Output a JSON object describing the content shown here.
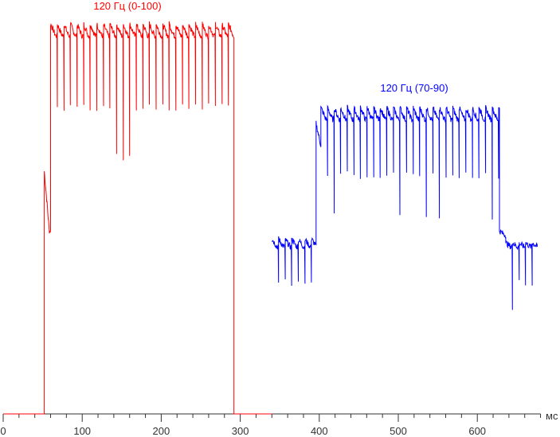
{
  "chart_data": {
    "type": "line",
    "title": "",
    "xlabel": "мс",
    "ylabel": "",
    "xlim": [
      0,
      680
    ],
    "x_ticks": [
      0,
      100,
      200,
      300,
      400,
      500,
      600
    ],
    "x_minor_step": 20,
    "grid": false,
    "refresh_period_ms": 8.33,
    "series": [
      {
        "name": "120 Гц (0-100)",
        "color": "#ff0000",
        "baseline": 0,
        "segments": [
          {
            "from": 52,
            "to": 60,
            "peak": 61,
            "settle": 46,
            "dip": null
          },
          {
            "from": 60,
            "to": 292,
            "peak": 98,
            "settle": 95,
            "dip": 77
          }
        ]
      },
      {
        "name": "120 Гц (70-90)",
        "color": "#0000ff",
        "baseline": null,
        "segments": [
          {
            "from": 340,
            "to": 396,
            "peak": 44,
            "settle": 42,
            "dip": 33
          },
          {
            "from": 396,
            "to": 402,
            "peak": 73,
            "settle": 67,
            "dip": null
          },
          {
            "from": 402,
            "to": 628,
            "peak": 77,
            "settle": 74,
            "dip": 60
          },
          {
            "from": 628,
            "to": 636,
            "peak": 46,
            "settle": 45,
            "dip": null
          },
          {
            "from": 636,
            "to": 676,
            "peak": 43,
            "settle": 42,
            "dip": 33
          }
        ]
      }
    ]
  }
}
